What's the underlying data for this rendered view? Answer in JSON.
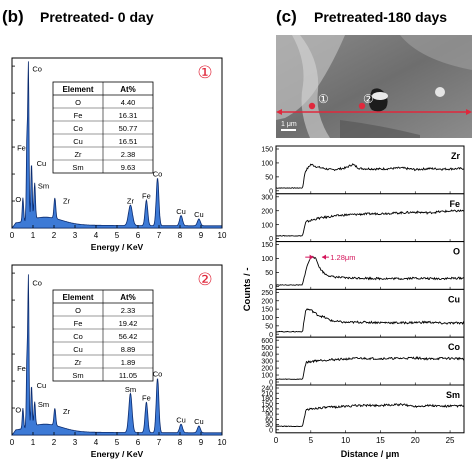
{
  "panels": {
    "b": {
      "letter": "(b)",
      "title": "Pretreated- 0 day"
    },
    "c": {
      "letter": "(c)",
      "title": "Pretreated-180 days"
    }
  },
  "colors": {
    "spectrum_fill": "#3d7ad6",
    "spectrum_line": "#0a2a6e",
    "marker": "#e0283c",
    "annotation": "#d4145a"
  },
  "sem": {
    "scale_bar_label": "1 μm",
    "markers": [
      "①",
      "②"
    ]
  },
  "chart_data": [
    {
      "type": "area",
      "id": "eds-spectrum-1",
      "marker_label": "①",
      "xlabel": "Energy / KeV",
      "xlim": [
        0,
        10
      ],
      "xticks": [
        "0",
        "1",
        "2",
        "3",
        "4",
        "5",
        "6",
        "7",
        "8",
        "9",
        "10"
      ],
      "peaks": [
        {
          "label": "O",
          "x": 0.52,
          "height": 0.14
        },
        {
          "label": "Fe",
          "x": 0.71,
          "height": 0.48
        },
        {
          "label": "Co",
          "x": 0.78,
          "height": 0.92
        },
        {
          "label": "Cu",
          "x": 0.93,
          "height": 0.33
        },
        {
          "label": "Sm",
          "x": 1.08,
          "height": 0.21
        },
        {
          "label": "Zr",
          "x": 2.04,
          "height": 0.12
        },
        {
          "label": "Zr",
          "x": 5.64,
          "height": 0.12
        },
        {
          "label": "Fe",
          "x": 6.4,
          "height": 0.15
        },
        {
          "label": "Co",
          "x": 6.93,
          "height": 0.28
        },
        {
          "label": "Cu",
          "x": 8.05,
          "height": 0.06
        },
        {
          "label": "Cu",
          "x": 8.9,
          "height": 0.04
        }
      ],
      "table": {
        "headers": [
          "Element",
          "At%"
        ],
        "rows": [
          [
            "O",
            "4.40"
          ],
          [
            "Fe",
            "16.31"
          ],
          [
            "Co",
            "50.77"
          ],
          [
            "Cu",
            "16.51"
          ],
          [
            "Zr",
            "2.38"
          ],
          [
            "Sm",
            "9.63"
          ]
        ]
      }
    },
    {
      "type": "area",
      "id": "eds-spectrum-2",
      "marker_label": "②",
      "xlabel": "Energy / KeV",
      "xlim": [
        0,
        10
      ],
      "xticks": [
        "0",
        "1",
        "2",
        "3",
        "4",
        "5",
        "6",
        "7",
        "8",
        "9",
        "10"
      ],
      "peaks": [
        {
          "label": "O",
          "x": 0.52,
          "height": 0.12
        },
        {
          "label": "Fe",
          "x": 0.71,
          "height": 0.4
        },
        {
          "label": "Co",
          "x": 0.78,
          "height": 0.88
        },
        {
          "label": "Cu",
          "x": 0.93,
          "height": 0.24
        },
        {
          "label": "Sm",
          "x": 1.08,
          "height": 0.14
        },
        {
          "label": "Zr",
          "x": 2.04,
          "height": 0.1
        },
        {
          "label": "Sm",
          "x": 5.64,
          "height": 0.23
        },
        {
          "label": "Fe",
          "x": 6.4,
          "height": 0.18
        },
        {
          "label": "Co",
          "x": 6.93,
          "height": 0.32
        },
        {
          "label": "Cu",
          "x": 8.05,
          "height": 0.05
        },
        {
          "label": "Cu",
          "x": 8.9,
          "height": 0.04
        }
      ],
      "table": {
        "headers": [
          "Element",
          "At%"
        ],
        "rows": [
          [
            "O",
            "2.33"
          ],
          [
            "Fe",
            "19.42"
          ],
          [
            "Co",
            "56.42"
          ],
          [
            "Cu",
            "8.89"
          ],
          [
            "Zr",
            "1.89"
          ],
          [
            "Sm",
            "11.05"
          ]
        ]
      }
    },
    {
      "type": "line",
      "id": "line-scan-profiles",
      "xlabel": "Distance / μm",
      "ylabel": "Counts / -",
      "xlim": [
        0,
        27
      ],
      "xticks": [
        "0",
        "5",
        "10",
        "15",
        "20",
        "25"
      ],
      "annotation": "1.28μm",
      "profiles": [
        {
          "element": "Zr",
          "ylim": [
            0,
            150
          ],
          "yticks": [
            "0",
            "50",
            "100",
            "150"
          ],
          "x": [
            0,
            2,
            3.8,
            4.2,
            5,
            6,
            8,
            10,
            11,
            12,
            15,
            18,
            20,
            22,
            24,
            27
          ],
          "y": [
            10,
            10,
            10,
            70,
            95,
            85,
            75,
            82,
            95,
            80,
            78,
            82,
            76,
            80,
            78,
            80
          ]
        },
        {
          "element": "Fe",
          "ylim": [
            0,
            300
          ],
          "yticks": [
            "0",
            "100",
            "200",
            "300"
          ],
          "x": [
            0,
            2,
            3.8,
            4.3,
            6,
            8,
            10,
            12,
            15,
            18,
            20,
            22,
            24,
            27
          ],
          "y": [
            20,
            20,
            20,
            120,
            145,
            160,
            170,
            175,
            180,
            185,
            190,
            185,
            195,
            200
          ]
        },
        {
          "element": "O",
          "ylim": [
            0,
            150
          ],
          "yticks": [
            "0",
            "50",
            "100",
            "150"
          ],
          "x": [
            0,
            2,
            3.8,
            4.3,
            4.8,
            5.3,
            5.8,
            6.3,
            7,
            8,
            10,
            12,
            15,
            18,
            20,
            22,
            24,
            27
          ],
          "y": [
            5,
            5,
            5,
            60,
            95,
            110,
            95,
            65,
            45,
            35,
            30,
            30,
            28,
            28,
            30,
            28,
            28,
            30
          ]
        },
        {
          "element": "Cu",
          "ylim": [
            0,
            250
          ],
          "yticks": [
            "0",
            "50",
            "100",
            "150",
            "200",
            "250"
          ],
          "x": [
            0,
            2,
            3.8,
            4.3,
            5,
            6,
            7,
            8,
            10,
            12,
            15,
            18,
            20,
            22,
            24,
            27
          ],
          "y": [
            15,
            15,
            15,
            150,
            145,
            115,
            100,
            80,
            70,
            72,
            70,
            68,
            70,
            72,
            65,
            68
          ]
        },
        {
          "element": "Co",
          "ylim": [
            0,
            600
          ],
          "yticks": [
            "0",
            "100",
            "200",
            "300",
            "400",
            "500",
            "600"
          ],
          "x": [
            0,
            2,
            3.8,
            4.3,
            6,
            8,
            10,
            12,
            15,
            18,
            20,
            22,
            24,
            27
          ],
          "y": [
            40,
            40,
            40,
            280,
            310,
            320,
            330,
            340,
            335,
            340,
            345,
            330,
            340,
            335
          ]
        },
        {
          "element": "Sm",
          "ylim": [
            0,
            240
          ],
          "yticks": [
            "0",
            "30",
            "60",
            "90",
            "120",
            "150",
            "180",
            "210",
            "240"
          ],
          "x": [
            0,
            2,
            3.8,
            4.3,
            6,
            8,
            10,
            12,
            15,
            18,
            20,
            22,
            24,
            27
          ],
          "y": [
            20,
            20,
            20,
            115,
            125,
            130,
            135,
            140,
            140,
            145,
            135,
            140,
            135,
            138
          ]
        }
      ]
    }
  ]
}
